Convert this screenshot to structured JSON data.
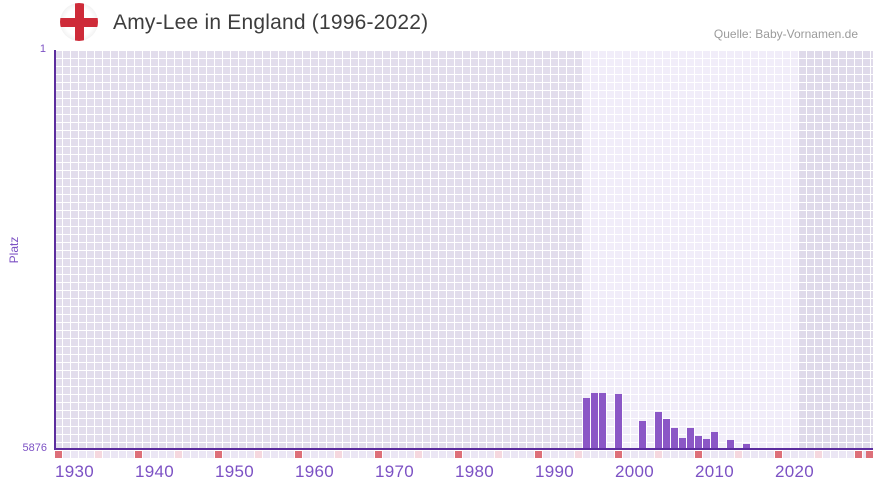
{
  "header": {
    "title": "Amy-Lee in England (1996-2022)",
    "source": "Quelle: Baby-Vornamen.de",
    "flag": "england-st-george-cross"
  },
  "chart_data": {
    "type": "bar",
    "title": "Amy-Lee in England (1996-2022)",
    "xlabel": "",
    "ylabel": "Platz",
    "y_axis": {
      "label_top": "1",
      "label_bottom": "5876",
      "min": 1,
      "max": 5876,
      "inverted": true
    },
    "x_axis": {
      "range_start": 1930,
      "range_end": 2031,
      "tick_label_years": [
        1930,
        1940,
        1950,
        1960,
        1970,
        1980,
        1990,
        2000,
        2010,
        2020
      ],
      "major_ticks_every": 10,
      "minor_ticks_every": 5,
      "edge_marker": true
    },
    "highlight_range": {
      "start": 1996,
      "end": 2022
    },
    "grid": true,
    "legend": "none",
    "series": [
      {
        "name": "Platz",
        "points": [
          {
            "year": 1996,
            "rank": 5140
          },
          {
            "year": 1997,
            "rank": 5070
          },
          {
            "year": 1998,
            "rank": 5070
          },
          {
            "year": 2000,
            "rank": 5085
          },
          {
            "year": 2003,
            "rank": 5480
          },
          {
            "year": 2005,
            "rank": 5350
          },
          {
            "year": 2006,
            "rank": 5450
          },
          {
            "year": 2007,
            "rank": 5580
          },
          {
            "year": 2008,
            "rank": 5725
          },
          {
            "year": 2009,
            "rank": 5580
          },
          {
            "year": 2010,
            "rank": 5705
          },
          {
            "year": 2011,
            "rank": 5745
          },
          {
            "year": 2012,
            "rank": 5645
          },
          {
            "year": 2014,
            "rank": 5755
          },
          {
            "year": 2016,
            "rank": 5815
          }
        ]
      }
    ],
    "colors": {
      "bar": "#8b57c6",
      "axis": "#5c2d9e",
      "axis_label": "#7c51c4",
      "cell_in_range": "#f1edf9",
      "cell_out_left": "#e2ddec",
      "cell_out_right": "#dfdaea",
      "tick_base": "#ebe6f4",
      "tick_major": "#dd6f79",
      "tick_minor": "#f5d7de",
      "title": "#3d3d3d",
      "source": "#9b9b9b",
      "flag_red": "#ce2b39"
    }
  }
}
